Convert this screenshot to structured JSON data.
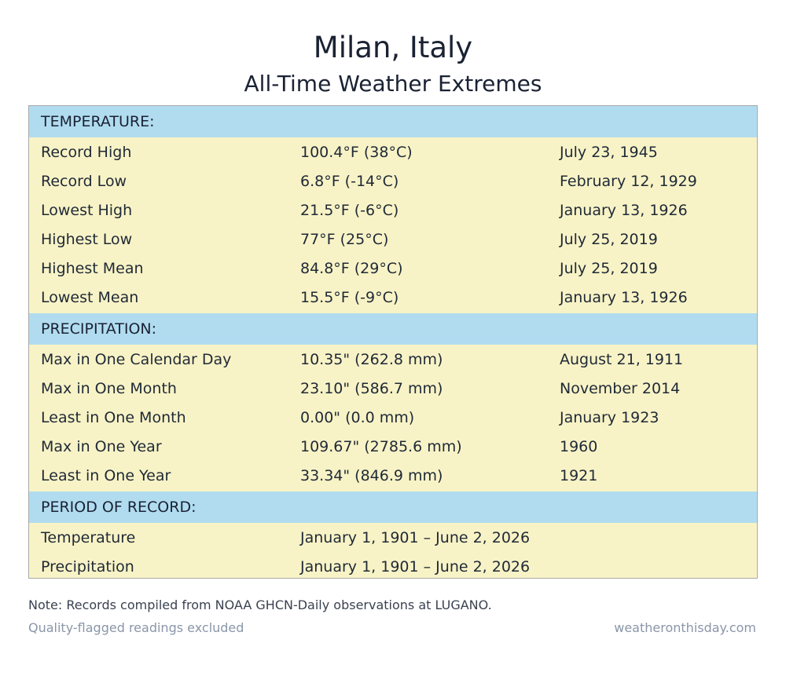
{
  "header": {
    "title": "Milan, Italy",
    "subtitle": "All-Time Weather Extremes"
  },
  "temperature": {
    "heading": "TEMPERATURE:",
    "rows": [
      {
        "label": "Record High",
        "value": "100.4°F (38°C)",
        "date": "July 23, 1945"
      },
      {
        "label": "Record Low",
        "value": "6.8°F (-14°C)",
        "date": "February 12, 1929"
      },
      {
        "label": "Lowest High",
        "value": "21.5°F (-6°C)",
        "date": "January 13, 1926"
      },
      {
        "label": "Highest Low",
        "value": "77°F (25°C)",
        "date": "July 25, 2019"
      },
      {
        "label": "Highest Mean",
        "value": "84.8°F (29°C)",
        "date": "July 25, 2019"
      },
      {
        "label": "Lowest Mean",
        "value": "15.5°F (-9°C)",
        "date": "January 13, 1926"
      }
    ]
  },
  "precipitation": {
    "heading": "PRECIPITATION:",
    "rows": [
      {
        "label": "Max in One Calendar Day",
        "value": "10.35\" (262.8 mm)",
        "date": "August 21, 1911"
      },
      {
        "label": "Max in One Month",
        "value": "23.10\" (586.7 mm)",
        "date": "November 2014"
      },
      {
        "label": "Least in One Month",
        "value": "0.00\" (0.0 mm)",
        "date": "January 1923"
      },
      {
        "label": "Max in One Year",
        "value": "109.67\" (2785.6 mm)",
        "date": "1960"
      },
      {
        "label": "Least in One Year",
        "value": "33.34\" (846.9 mm)",
        "date": "1921"
      }
    ]
  },
  "period": {
    "heading": "PERIOD OF RECORD:",
    "rows": [
      {
        "label": "Temperature",
        "value": "January 1, 1901 – June 2, 2026"
      },
      {
        "label": "Precipitation",
        "value": "January 1, 1901 – June 2, 2026"
      }
    ]
  },
  "footer": {
    "note": "Note: Records compiled from NOAA GHCN-Daily observations at LUGANO.",
    "quality": "Quality-flagged readings excluded",
    "site": "weatheronthisday.com"
  },
  "colors": {
    "section_header_bg": "#b1dcf0",
    "row_bg": "#f8f3c6",
    "border": "#a9a9a9",
    "muted_text": "#8a96a8"
  }
}
